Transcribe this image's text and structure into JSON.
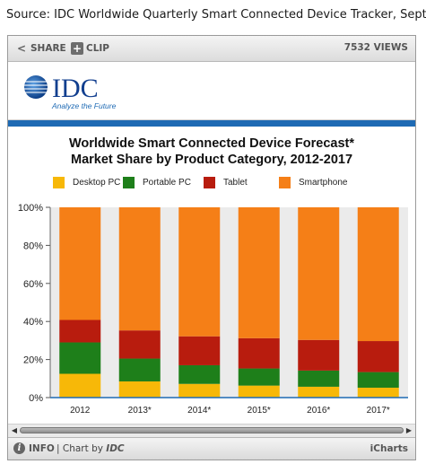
{
  "source_text": "Source: IDC Worldwide Quarterly Smart Connected Device Tracker, September",
  "toolbar": {
    "share_label": "SHARE",
    "clip_label": "CLIP",
    "views_label": "7532 VIEWS"
  },
  "logo": {
    "wordmark": "IDC",
    "tagline": "Analyze the Future"
  },
  "footer": {
    "info_label": "INFO",
    "chart_by_label": "| Chart by",
    "chart_by_brand": "IDC",
    "brand_label": "iCharts"
  },
  "colors": {
    "desktop": "#f7b808",
    "portable": "#1e7f1a",
    "tablet": "#b81c0e",
    "smartphone": "#f57f17",
    "plot_bg": "#ebebeb",
    "axis_blue": "#1e6ab4"
  },
  "chart_data": {
    "type": "bar",
    "stacked": true,
    "title": "Worldwide Smart Connected Device Forecast*",
    "subtitle": "Market Share by Product Category, 2012-2017",
    "categories": [
      "2012",
      "2013*",
      "2014*",
      "2015*",
      "2016*",
      "2017*"
    ],
    "series": [
      {
        "name": "Desktop PC",
        "values": [
          12.5,
          8.5,
          7.2,
          6.3,
          5.7,
          5.2
        ]
      },
      {
        "name": "Portable PC",
        "values": [
          16.5,
          12.0,
          9.8,
          9.0,
          8.5,
          8.2
        ]
      },
      {
        "name": "Tablet",
        "values": [
          11.8,
          14.8,
          15.2,
          15.9,
          16.1,
          16.3
        ]
      },
      {
        "name": "Smartphone",
        "values": [
          59.2,
          64.7,
          67.8,
          68.8,
          69.7,
          70.3
        ]
      }
    ],
    "yticks": [
      "0%",
      "20%",
      "40%",
      "60%",
      "80%",
      "100%"
    ],
    "ylim": [
      0,
      100
    ],
    "legend_position": "top",
    "grid": false
  }
}
